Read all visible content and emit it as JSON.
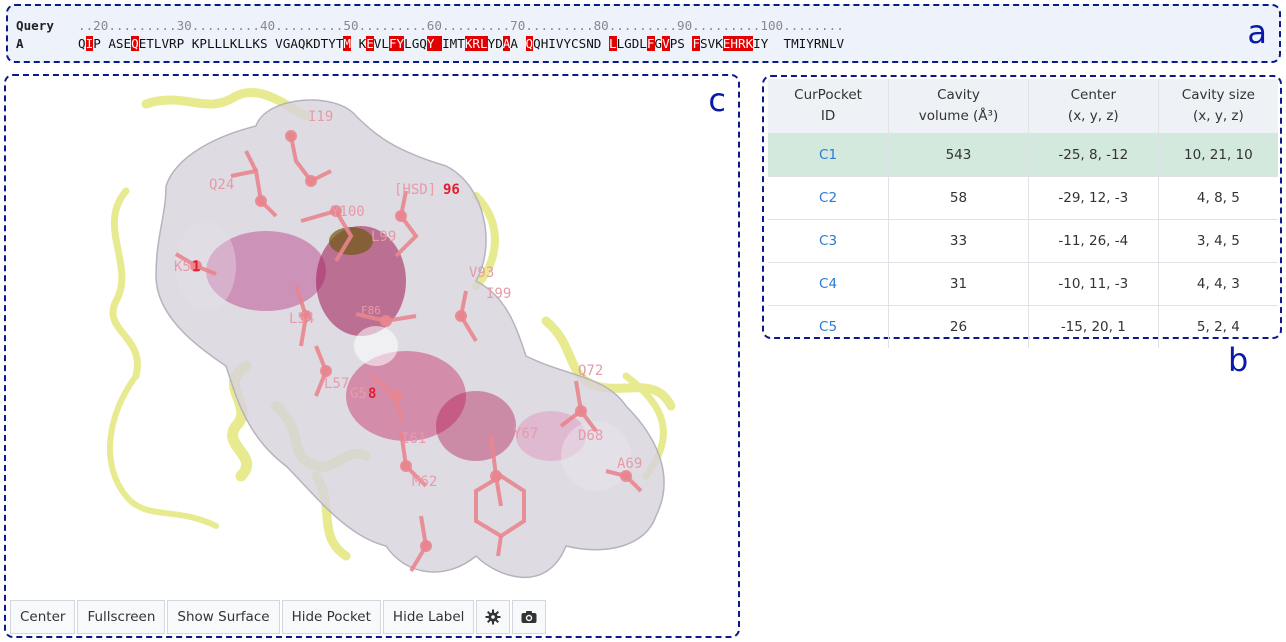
{
  "sequence_panel": {
    "letter": "a",
    "query_label": "Query",
    "chain_label": "A",
    "ruler": "..20.........30.........40.........50.........60.........70.........80.........90.........100........",
    "sequence": "QIP ASEQETLVRP KPLLLKLLKS VGAQKDTYTM KEVLFYLGQY IMTKRLYDAA QQHIVYCSND LLGDLFGVPS FSVKEHRKIY  TMIYRNLV",
    "highlighted_positions": [
      1,
      7,
      35,
      38,
      41,
      42,
      46,
      47,
      51,
      52,
      53,
      56,
      59,
      70,
      75,
      77,
      81,
      85,
      86,
      87,
      88
    ],
    "highlight_color": "#e30000"
  },
  "viewer_panel": {
    "letter": "c",
    "residue_labels": [
      {
        "text": "I19",
        "color": "#e89aa8"
      },
      {
        "text": "Q24",
        "color": "#e89aa8"
      },
      {
        "text": "Y100",
        "color": "#e89aa8"
      },
      {
        "text": "[HSD]",
        "color": "#e89aa8"
      },
      {
        "text": "96",
        "color": "#e0202e"
      },
      {
        "text": "L99",
        "color": "#e89aa8"
      },
      {
        "text": "K5",
        "color": "#e89aa8"
      },
      {
        "text": "1",
        "color": "#e0202e"
      },
      {
        "text": "V93",
        "color": "#e89aa8"
      },
      {
        "text": "L54",
        "color": "#e89aa8"
      },
      {
        "text": "F86",
        "color": "#e89aa8"
      },
      {
        "text": "I99",
        "color": "#e89aa8"
      },
      {
        "text": "L57",
        "color": "#e89aa8"
      },
      {
        "text": "G5",
        "color": "#e89aa8"
      },
      {
        "text": "8",
        "color": "#e0202e"
      },
      {
        "text": "Q72",
        "color": "#e89aa8"
      },
      {
        "text": "I61",
        "color": "#e89aa8"
      },
      {
        "text": "Y67",
        "color": "#e89aa8"
      },
      {
        "text": "D68",
        "color": "#e89aa8"
      },
      {
        "text": "A69",
        "color": "#e89aa8"
      },
      {
        "text": "M62",
        "color": "#e89aa8"
      }
    ],
    "toolbar": {
      "center": "Center",
      "fullscreen": "Fullscreen",
      "show_surface": "Show Surface",
      "hide_pocket": "Hide Pocket",
      "hide_label": "Hide Label",
      "settings_icon": "gear-icon",
      "snapshot_icon": "camera-icon"
    }
  },
  "table_panel": {
    "letter": "b",
    "headers": [
      [
        "CurPocket",
        "ID"
      ],
      [
        "Cavity",
        "volume (Å³)"
      ],
      [
        "Center",
        "(x, y, z)"
      ],
      [
        "Cavity size",
        "(x, y, z)"
      ]
    ],
    "rows": [
      {
        "id": "C1",
        "volume": "543",
        "center": "-25, 8, -12",
        "size": "10, 21, 10",
        "selected": true
      },
      {
        "id": "C2",
        "volume": "58",
        "center": "-29, 12, -3",
        "size": "4, 8, 5",
        "selected": false
      },
      {
        "id": "C3",
        "volume": "33",
        "center": "-11, 26, -4",
        "size": "3, 4, 5",
        "selected": false
      },
      {
        "id": "C4",
        "volume": "31",
        "center": "-10, 11, -3",
        "size": "4, 4, 3",
        "selected": false
      },
      {
        "id": "C5",
        "volume": "26",
        "center": "-15, 20, 1",
        "size": "5, 2, 4",
        "selected": false
      }
    ],
    "selected_color": "#d4e9de",
    "link_color": "#2a7bd4"
  }
}
